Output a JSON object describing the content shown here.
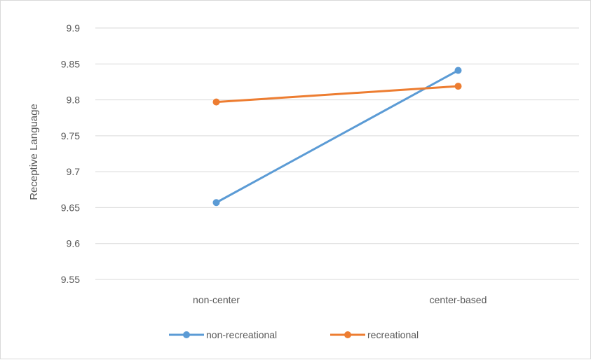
{
  "chart_data": {
    "type": "line",
    "title": "",
    "xlabel": "",
    "ylabel": "Receptive Language",
    "categories": [
      "non-center",
      "center-based"
    ],
    "ylim": [
      9.55,
      9.9
    ],
    "yticks": [
      "9.55",
      "9.6",
      "9.65",
      "9.7",
      "9.75",
      "9.8",
      "9.85",
      "9.9"
    ],
    "grid": true,
    "legend_position": "bottom",
    "series": [
      {
        "name": "non-recreational",
        "color": "#5b9bd5",
        "values": [
          9.657,
          9.841
        ]
      },
      {
        "name": "recreational",
        "color": "#ed7d31",
        "values": [
          9.797,
          9.819
        ]
      }
    ]
  }
}
